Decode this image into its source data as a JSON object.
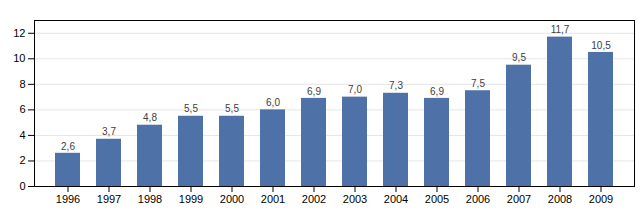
{
  "chart_data": {
    "type": "bar",
    "categories": [
      "1996",
      "1997",
      "1998",
      "1999",
      "2000",
      "2001",
      "2002",
      "2003",
      "2004",
      "2005",
      "2006",
      "2007",
      "2008",
      "2009"
    ],
    "values": [
      2.6,
      3.7,
      4.8,
      5.5,
      5.5,
      6.0,
      6.9,
      7.0,
      7.3,
      6.9,
      7.5,
      9.5,
      11.7,
      10.5
    ],
    "value_labels": [
      "2,6",
      "3,7",
      "4,8",
      "5,5",
      "5,5",
      "6,0",
      "6,9",
      "7,0",
      "7,3",
      "6,9",
      "7,5",
      "9,5",
      "11,7",
      "10,5"
    ],
    "data_labels": true,
    "color": "#4e72a8",
    "ylim": [
      0,
      13
    ],
    "yticks": [
      0,
      2,
      4,
      6,
      8,
      10,
      12
    ],
    "grid": true
  }
}
